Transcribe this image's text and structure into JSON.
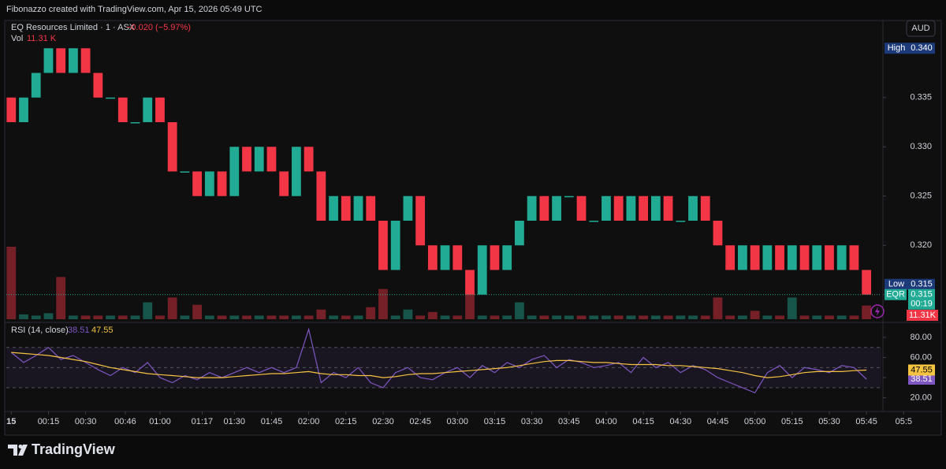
{
  "header": {
    "watermark": "Fibonazzo created with TradingView.com, Apr 15, 2026 05:49 UTC",
    "currency": "AUD"
  },
  "footer": {
    "brand": "TradingView"
  },
  "chart_data": [
    {
      "type": "candlestick",
      "title": "EQ Resources Limited · 1 · ASX",
      "change": "−0.020 (−5.97%)",
      "volume_title": "Vol",
      "volume_legend": "11.31 K",
      "volume_label": "11.31K",
      "up_color": "#22ab94",
      "down_color": "#f23645",
      "grid": false,
      "xlim": [
        -2,
        351
      ],
      "ylim": [
        0.3125,
        0.3417
      ],
      "yticks": [
        0.315,
        {
          "value": 0.32,
          "label": "0.320"
        },
        0.325,
        {
          "value": 0.33,
          "label": "0.330"
        },
        0.335
      ],
      "x": [
        0,
        5,
        10,
        15,
        20,
        25,
        30,
        35,
        40,
        45,
        50,
        55,
        60,
        65,
        70,
        75,
        80,
        85,
        90,
        95,
        100,
        105,
        110,
        115,
        120,
        125,
        130,
        135,
        140,
        145,
        150,
        155,
        160,
        165,
        170,
        175,
        180,
        185,
        190,
        195,
        200,
        205,
        210,
        215,
        220,
        225,
        230,
        235,
        240,
        245,
        250,
        255,
        260,
        265,
        270,
        275,
        280,
        285,
        290,
        295,
        300,
        305,
        310,
        315,
        320,
        325,
        330,
        335,
        340,
        345
      ],
      "open": [
        0.335,
        0.3325,
        0.335,
        0.3375,
        0.34,
        0.3375,
        0.34,
        0.3375,
        0.335,
        0.335,
        0.3325,
        0.3325,
        0.335,
        0.3325,
        0.3275,
        0.3275,
        0.325,
        0.3275,
        0.325,
        0.33,
        0.3275,
        0.33,
        0.3275,
        0.325,
        0.33,
        0.3275,
        0.3225,
        0.325,
        0.3225,
        0.325,
        0.3225,
        0.3175,
        0.3225,
        0.325,
        0.32,
        0.3175,
        0.32,
        0.3175,
        0.315,
        0.32,
        0.3175,
        0.32,
        0.3225,
        0.325,
        0.3225,
        0.325,
        0.325,
        0.3225,
        0.3225,
        0.325,
        0.3225,
        0.325,
        0.3225,
        0.325,
        0.3225,
        0.3225,
        0.325,
        0.3225,
        0.32,
        0.3175,
        0.32,
        0.3175,
        0.32,
        0.3175,
        0.32,
        0.3175,
        0.32,
        0.3175,
        0.32,
        0.3175
      ],
      "high": [
        0.335,
        0.335,
        0.3375,
        0.34,
        0.34,
        0.34,
        0.34,
        0.3375,
        0.335,
        0.335,
        0.3325,
        0.335,
        0.335,
        0.3325,
        0.3275,
        0.3275,
        0.3275,
        0.3275,
        0.33,
        0.33,
        0.33,
        0.33,
        0.3275,
        0.33,
        0.33,
        0.3275,
        0.325,
        0.325,
        0.325,
        0.325,
        0.3225,
        0.3225,
        0.325,
        0.325,
        0.32,
        0.32,
        0.32,
        0.3175,
        0.32,
        0.32,
        0.32,
        0.3225,
        0.325,
        0.325,
        0.325,
        0.325,
        0.325,
        0.3225,
        0.325,
        0.325,
        0.325,
        0.325,
        0.325,
        0.325,
        0.3225,
        0.325,
        0.325,
        0.3225,
        0.32,
        0.32,
        0.32,
        0.32,
        0.32,
        0.32,
        0.32,
        0.32,
        0.32,
        0.32,
        0.32,
        0.3175
      ],
      "low": [
        0.3325,
        0.3325,
        0.335,
        0.3375,
        0.3375,
        0.3375,
        0.3375,
        0.335,
        0.335,
        0.3325,
        0.3325,
        0.3325,
        0.3325,
        0.3275,
        0.3275,
        0.325,
        0.325,
        0.325,
        0.325,
        0.3275,
        0.3275,
        0.3275,
        0.325,
        0.325,
        0.3275,
        0.3225,
        0.3225,
        0.3225,
        0.3225,
        0.3225,
        0.3175,
        0.3175,
        0.3225,
        0.32,
        0.3175,
        0.3175,
        0.3175,
        0.315,
        0.315,
        0.3175,
        0.3175,
        0.32,
        0.3225,
        0.3225,
        0.3225,
        0.325,
        0.3225,
        0.3225,
        0.3225,
        0.3225,
        0.3225,
        0.3225,
        0.3225,
        0.3225,
        0.3225,
        0.3225,
        0.3225,
        0.32,
        0.3175,
        0.3175,
        0.3175,
        0.3175,
        0.3175,
        0.3175,
        0.3175,
        0.3175,
        0.3175,
        0.3175,
        0.3175,
        0.315
      ],
      "close": [
        0.3325,
        0.335,
        0.3375,
        0.34,
        0.3375,
        0.34,
        0.3375,
        0.335,
        0.335,
        0.3325,
        0.3325,
        0.335,
        0.3325,
        0.3275,
        0.3275,
        0.325,
        0.3275,
        0.325,
        0.33,
        0.3275,
        0.33,
        0.3275,
        0.325,
        0.33,
        0.3275,
        0.3225,
        0.325,
        0.3225,
        0.325,
        0.3225,
        0.3175,
        0.3225,
        0.325,
        0.32,
        0.3175,
        0.32,
        0.3175,
        0.315,
        0.32,
        0.3175,
        0.32,
        0.3225,
        0.325,
        0.3225,
        0.325,
        0.325,
        0.3225,
        0.3225,
        0.325,
        0.3225,
        0.325,
        0.3225,
        0.325,
        0.3225,
        0.3225,
        0.325,
        0.3225,
        0.32,
        0.3175,
        0.32,
        0.3175,
        0.32,
        0.3175,
        0.32,
        0.3175,
        0.32,
        0.3175,
        0.32,
        0.3175,
        0.315
      ],
      "volume": [
        60,
        4,
        3,
        5,
        35,
        3,
        3,
        3,
        3,
        3,
        3,
        14,
        3,
        18,
        3,
        12,
        3,
        3,
        3,
        3,
        3,
        3,
        3,
        3,
        3,
        8,
        3,
        3,
        3,
        10,
        25,
        3,
        8,
        3,
        6,
        3,
        3,
        22,
        3,
        3,
        3,
        14,
        3,
        3,
        3,
        3,
        3,
        3,
        3,
        3,
        3,
        3,
        3,
        3,
        3,
        3,
        3,
        18,
        3,
        3,
        7,
        3,
        3,
        18,
        3,
        3,
        3,
        3,
        3,
        11.31
      ],
      "markers": [
        {
          "label": "High",
          "value": 0.34,
          "value_label": "0.340",
          "color": "#1c3a7a"
        },
        {
          "label": "Low",
          "value": 0.315,
          "value_label": "0.315",
          "color": "#1c3a7a"
        }
      ],
      "last_price": {
        "label": "EQR",
        "value": 0.315,
        "value_label": "0.315",
        "countdown": "00:19",
        "color": "#22ab94"
      }
    },
    {
      "type": "line",
      "title": "RSI (14, close)",
      "xlim": [
        -2,
        351
      ],
      "ylim": [
        8,
        92.5
      ],
      "yticks": [
        {
          "value": 20,
          "label": "20.00"
        },
        {
          "value": 40,
          "label": "40.00"
        },
        {
          "value": 60,
          "label": "60.00"
        },
        {
          "value": 80,
          "label": "80.00"
        }
      ],
      "levels": [
        30,
        50,
        70
      ],
      "band": [
        30,
        70
      ],
      "xticks": [
        {
          "value": 0,
          "label": "15"
        },
        {
          "value": 15,
          "label": "00:15"
        },
        {
          "value": 30,
          "label": "00:30"
        },
        {
          "value": 46,
          "label": "00:46"
        },
        {
          "value": 60,
          "label": "01:00"
        },
        {
          "value": 77,
          "label": "01:17"
        },
        {
          "value": 90,
          "label": "01:30"
        },
        {
          "value": 105,
          "label": "01:45"
        },
        {
          "value": 120,
          "label": "02:00"
        },
        {
          "value": 135,
          "label": "02:15"
        },
        {
          "value": 150,
          "label": "02:30"
        },
        {
          "value": 165,
          "label": "02:45"
        },
        {
          "value": 180,
          "label": "03:00"
        },
        {
          "value": 195,
          "label": "03:15"
        },
        {
          "value": 210,
          "label": "03:30"
        },
        {
          "value": 225,
          "label": "03:45"
        },
        {
          "value": 240,
          "label": "04:00"
        },
        {
          "value": 255,
          "label": "04:15"
        },
        {
          "value": 270,
          "label": "04:30"
        },
        {
          "value": 285,
          "label": "04:45"
        },
        {
          "value": 300,
          "label": "05:00"
        },
        {
          "value": 315,
          "label": "05:15"
        },
        {
          "value": 330,
          "label": "05:30"
        },
        {
          "value": 345,
          "label": "05:45"
        },
        {
          "value": 360,
          "label": "05:5"
        }
      ],
      "x": [
        0,
        5,
        10,
        15,
        20,
        25,
        30,
        35,
        40,
        45,
        50,
        55,
        60,
        65,
        70,
        75,
        80,
        85,
        90,
        95,
        100,
        105,
        110,
        115,
        120,
        125,
        130,
        135,
        140,
        145,
        150,
        155,
        160,
        165,
        170,
        175,
        180,
        185,
        190,
        195,
        200,
        205,
        210,
        215,
        220,
        225,
        230,
        235,
        240,
        245,
        250,
        255,
        260,
        265,
        270,
        275,
        280,
        285,
        290,
        295,
        300,
        305,
        310,
        315,
        320,
        325,
        330,
        335,
        340,
        345
      ],
      "series": [
        {
          "color": "#7e57c2",
          "last_label": "38.51",
          "values": [
            65,
            55,
            62,
            70,
            58,
            62,
            55,
            48,
            42,
            50,
            45,
            55,
            40,
            35,
            42,
            38,
            45,
            40,
            45,
            50,
            45,
            50,
            45,
            50,
            88,
            35,
            45,
            40,
            50,
            35,
            30,
            45,
            50,
            40,
            38,
            45,
            50,
            40,
            52,
            45,
            55,
            50,
            58,
            62,
            50,
            58,
            55,
            50,
            52,
            55,
            45,
            60,
            50,
            55,
            45,
            52,
            48,
            40,
            35,
            30,
            25,
            45,
            52,
            40,
            50,
            48,
            45,
            52,
            50,
            38.51
          ]
        },
        {
          "color": "#f5c342",
          "last_label": "47.55",
          "values": [
            65,
            64,
            63,
            62,
            60,
            58,
            56,
            53,
            50,
            48,
            46,
            44,
            43,
            42,
            41,
            40,
            40,
            40,
            41,
            42,
            43,
            44,
            44,
            45,
            46,
            44,
            43,
            43,
            42,
            42,
            40,
            41,
            43,
            44,
            44,
            45,
            46,
            47,
            48,
            49,
            50,
            52,
            54,
            56,
            57,
            57,
            56,
            55,
            55,
            54,
            53,
            53,
            53,
            52,
            52,
            51,
            50,
            49,
            47,
            45,
            42,
            40,
            41,
            43,
            45,
            46,
            46,
            46,
            47,
            47.55
          ]
        }
      ]
    }
  ]
}
